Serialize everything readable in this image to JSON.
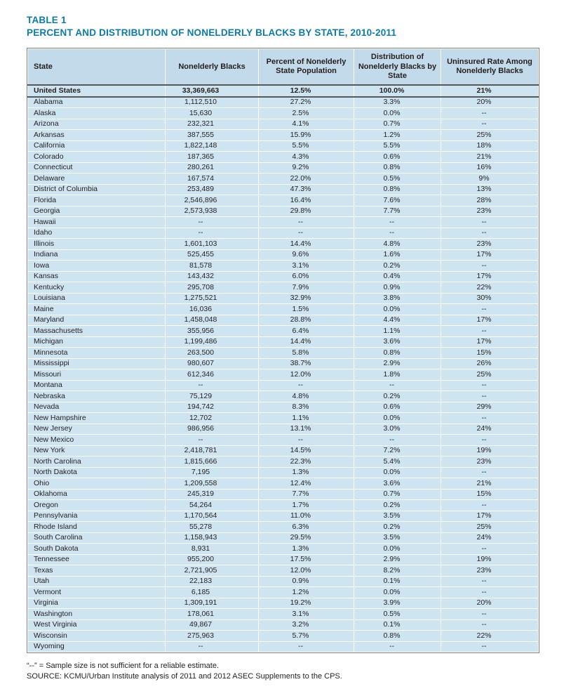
{
  "header": {
    "table_label": "TABLE 1",
    "title": "PERCENT AND DISTRIBUTION OF NONELDERLY BLACKS BY STATE, 2010-2011"
  },
  "colors": {
    "title_text": "#0e7ba7",
    "header_row_bg": "#c3daea",
    "body_row_bg": "#cfe4f1",
    "grid_line": "#ffffff",
    "rule_dark": "#57585a"
  },
  "table": {
    "columns": [
      "State",
      "Nonelderly Blacks",
      "Percent of Nonelderly State Population",
      "Distribution of Nonelderly Blacks by State",
      "Uninsured Rate Among Nonelderly Blacks"
    ],
    "rows": [
      {
        "bold": true,
        "cells": [
          "United States",
          "33,369,663",
          "12.5%",
          "100.0%",
          "21%"
        ]
      },
      {
        "bold": false,
        "cells": [
          "Alabama",
          "1,112,510",
          "27.2%",
          "3.3%",
          "20%"
        ]
      },
      {
        "bold": false,
        "cells": [
          "Alaska",
          "15,630",
          "2.5%",
          "0.0%",
          "--"
        ]
      },
      {
        "bold": false,
        "cells": [
          "Arizona",
          "232,321",
          "4.1%",
          "0.7%",
          "--"
        ]
      },
      {
        "bold": false,
        "cells": [
          "Arkansas",
          "387,555",
          "15.9%",
          "1.2%",
          "25%"
        ]
      },
      {
        "bold": false,
        "cells": [
          "California",
          "1,822,148",
          "5.5%",
          "5.5%",
          "18%"
        ]
      },
      {
        "bold": false,
        "cells": [
          "Colorado",
          "187,365",
          "4.3%",
          "0.6%",
          "21%"
        ]
      },
      {
        "bold": false,
        "cells": [
          "Connecticut",
          "280,261",
          "9.2%",
          "0.8%",
          "16%"
        ]
      },
      {
        "bold": false,
        "cells": [
          "Delaware",
          "167,574",
          "22.0%",
          "0.5%",
          "9%"
        ]
      },
      {
        "bold": false,
        "cells": [
          "District of Columbia",
          "253,489",
          "47.3%",
          "0.8%",
          "13%"
        ]
      },
      {
        "bold": false,
        "cells": [
          "Florida",
          "2,546,896",
          "16.4%",
          "7.6%",
          "28%"
        ]
      },
      {
        "bold": false,
        "cells": [
          "Georgia",
          "2,573,938",
          "29.8%",
          "7.7%",
          "23%"
        ]
      },
      {
        "bold": false,
        "cells": [
          "Hawaii",
          "--",
          "--",
          "--",
          "--"
        ]
      },
      {
        "bold": false,
        "cells": [
          "Idaho",
          "--",
          "--",
          "--",
          "--"
        ]
      },
      {
        "bold": false,
        "cells": [
          "Illinois",
          "1,601,103",
          "14.4%",
          "4.8%",
          "23%"
        ]
      },
      {
        "bold": false,
        "cells": [
          "Indiana",
          "525,455",
          "9.6%",
          "1.6%",
          "17%"
        ]
      },
      {
        "bold": false,
        "cells": [
          "Iowa",
          "81,578",
          "3.1%",
          "0.2%",
          "--"
        ]
      },
      {
        "bold": false,
        "cells": [
          "Kansas",
          "143,432",
          "6.0%",
          "0.4%",
          "17%"
        ]
      },
      {
        "bold": false,
        "cells": [
          "Kentucky",
          "295,708",
          "7.9%",
          "0.9%",
          "22%"
        ]
      },
      {
        "bold": false,
        "cells": [
          "Louisiana",
          "1,275,521",
          "32.9%",
          "3.8%",
          "30%"
        ]
      },
      {
        "bold": false,
        "cells": [
          "Maine",
          "16,036",
          "1.5%",
          "0.0%",
          "--"
        ]
      },
      {
        "bold": false,
        "cells": [
          "Maryland",
          "1,458,048",
          "28.8%",
          "4.4%",
          "17%"
        ]
      },
      {
        "bold": false,
        "cells": [
          "Massachusetts",
          "355,956",
          "6.4%",
          "1.1%",
          "--"
        ]
      },
      {
        "bold": false,
        "cells": [
          "Michigan",
          "1,199,486",
          "14.4%",
          "3.6%",
          "17%"
        ]
      },
      {
        "bold": false,
        "cells": [
          "Minnesota",
          "263,500",
          "5.8%",
          "0.8%",
          "15%"
        ]
      },
      {
        "bold": false,
        "cells": [
          "Mississippi",
          "980,607",
          "38.7%",
          "2.9%",
          "26%"
        ]
      },
      {
        "bold": false,
        "cells": [
          "Missouri",
          "612,346",
          "12.0%",
          "1.8%",
          "25%"
        ]
      },
      {
        "bold": false,
        "cells": [
          "Montana",
          "--",
          "--",
          "--",
          "--"
        ]
      },
      {
        "bold": false,
        "cells": [
          "Nebraska",
          "75,129",
          "4.8%",
          "0.2%",
          "--"
        ]
      },
      {
        "bold": false,
        "cells": [
          "Nevada",
          "194,742",
          "8.3%",
          "0.6%",
          "29%"
        ]
      },
      {
        "bold": false,
        "cells": [
          "New Hampshire",
          "12,702",
          "1.1%",
          "0.0%",
          "--"
        ]
      },
      {
        "bold": false,
        "cells": [
          "New Jersey",
          "986,956",
          "13.1%",
          "3.0%",
          "24%"
        ]
      },
      {
        "bold": false,
        "cells": [
          "New Mexico",
          "--",
          "--",
          "--",
          "--"
        ]
      },
      {
        "bold": false,
        "cells": [
          "New York",
          "2,418,781",
          "14.5%",
          "7.2%",
          "19%"
        ]
      },
      {
        "bold": false,
        "cells": [
          "North Carolina",
          "1,815,666",
          "22.3%",
          "5.4%",
          "23%"
        ]
      },
      {
        "bold": false,
        "cells": [
          "North Dakota",
          "7,195",
          "1.3%",
          "0.0%",
          "--"
        ]
      },
      {
        "bold": false,
        "cells": [
          "Ohio",
          "1,209,558",
          "12.4%",
          "3.6%",
          "21%"
        ]
      },
      {
        "bold": false,
        "cells": [
          "Oklahoma",
          "245,319",
          "7.7%",
          "0.7%",
          "15%"
        ]
      },
      {
        "bold": false,
        "cells": [
          "Oregon",
          "54,264",
          "1.7%",
          "0.2%",
          "--"
        ]
      },
      {
        "bold": false,
        "cells": [
          "Pennsylvania",
          "1,170,564",
          "11.0%",
          "3.5%",
          "17%"
        ]
      },
      {
        "bold": false,
        "cells": [
          "Rhode Island",
          "55,278",
          "6.3%",
          "0.2%",
          "25%"
        ]
      },
      {
        "bold": false,
        "cells": [
          "South Carolina",
          "1,158,943",
          "29.5%",
          "3.5%",
          "24%"
        ]
      },
      {
        "bold": false,
        "cells": [
          "South Dakota",
          "8,931",
          "1.3%",
          "0.0%",
          "--"
        ]
      },
      {
        "bold": false,
        "cells": [
          "Tennessee",
          "955,200",
          "17.5%",
          "2.9%",
          "19%"
        ]
      },
      {
        "bold": false,
        "cells": [
          "Texas",
          "2,721,905",
          "12.0%",
          "8.2%",
          "23%"
        ]
      },
      {
        "bold": false,
        "cells": [
          "Utah",
          "22,183",
          "0.9%",
          "0.1%",
          "--"
        ]
      },
      {
        "bold": false,
        "cells": [
          "Vermont",
          "6,185",
          "1.2%",
          "0.0%",
          "--"
        ]
      },
      {
        "bold": false,
        "cells": [
          "Virginia",
          "1,309,191",
          "19.2%",
          "3.9%",
          "20%"
        ]
      },
      {
        "bold": false,
        "cells": [
          "Washington",
          "178,061",
          "3.1%",
          "0.5%",
          "--"
        ]
      },
      {
        "bold": false,
        "cells": [
          "West Virginia",
          "49,867",
          "3.2%",
          "0.1%",
          "--"
        ]
      },
      {
        "bold": false,
        "cells": [
          "Wisconsin",
          "275,963",
          "5.7%",
          "0.8%",
          "22%"
        ]
      },
      {
        "bold": false,
        "cells": [
          "Wyoming",
          "--",
          "--",
          "--",
          "--"
        ]
      }
    ]
  },
  "footnotes": [
    "“--” = Sample size is not sufficient for a reliable estimate.",
    "SOURCE: KCMU/Urban Institute analysis of 2011 and 2012 ASEC Supplements to the CPS."
  ]
}
